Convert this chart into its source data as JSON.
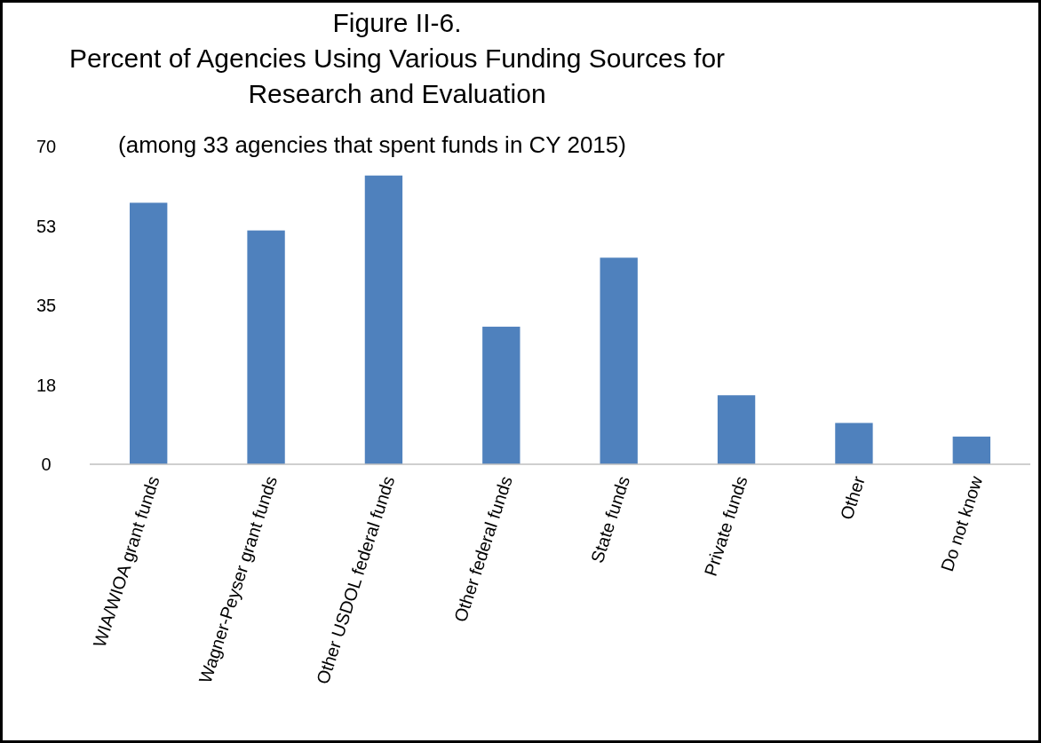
{
  "chart_data": {
    "type": "bar",
    "title": "Figure II-6.\nPercent of Agencies Using Various Funding Sources for\nResearch and Evaluation",
    "subtitle": "(among 33 agencies that spent funds in CY 2015)",
    "categories": [
      "WIA/WIOA grant funds",
      "Wagner-Peyser grant funds",
      "Other USDOL federal funds",
      "Other federal funds",
      "State funds",
      "Private funds",
      "Other",
      "Do not know"
    ],
    "values": [
      57.6,
      51.5,
      63.6,
      30.3,
      45.5,
      15.2,
      9.1,
      6.1
    ],
    "color": "#4f81bd",
    "ylim": [
      0,
      70
    ],
    "yticks": [
      0,
      {
        "value": 17.5,
        "label": "18"
      },
      35,
      {
        "value": 52.5,
        "label": "53"
      },
      70
    ],
    "grid": false
  }
}
